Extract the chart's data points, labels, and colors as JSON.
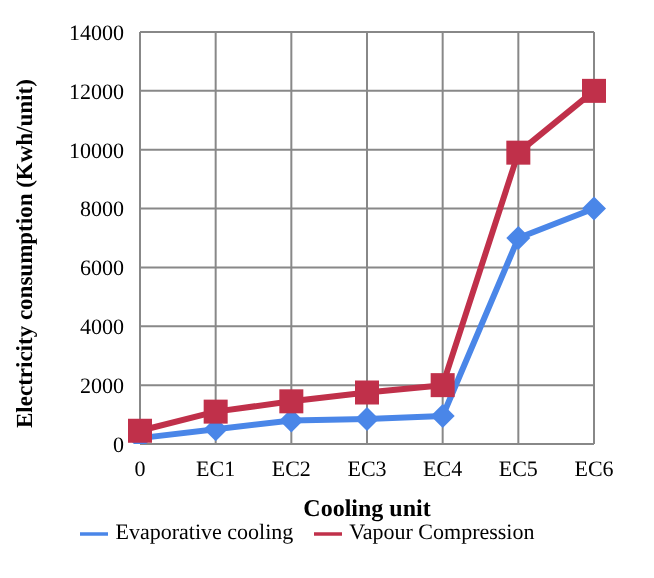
{
  "chart_data": {
    "type": "line",
    "xlabel": "Cooling unit",
    "ylabel": "Electricity consumption (Kwh/unit)",
    "categories": [
      "0",
      "EC1",
      "EC2",
      "EC3",
      "EC4",
      "EC5",
      "EC6"
    ],
    "series": [
      {
        "name": "Evaporative cooling",
        "color": "#4a86e8",
        "marker": "diamond",
        "values": [
          200,
          500,
          800,
          850,
          950,
          7000,
          8000
        ]
      },
      {
        "name": "Vapour Compression",
        "color": "#c0304a",
        "marker": "square",
        "values": [
          450,
          1100,
          1450,
          1750,
          2000,
          9900,
          12000
        ]
      }
    ],
    "ylim": [
      0,
      14000
    ],
    "yticks": [
      0,
      2000,
      4000,
      6000,
      8000,
      10000,
      12000,
      14000
    ],
    "grid": true,
    "legend": "bottom"
  }
}
